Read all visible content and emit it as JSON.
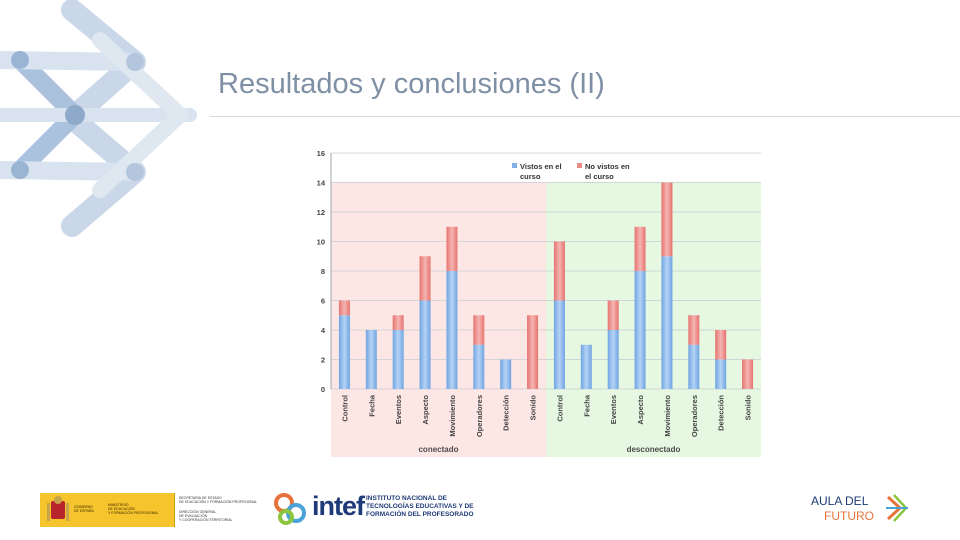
{
  "slide": {
    "title": "Resultados y conclusiones (II)"
  },
  "chart_data": {
    "type": "bar",
    "stacked": true,
    "title": "",
    "xlabel": "",
    "ylabel": "",
    "ylim": [
      0,
      16
    ],
    "yticks": [
      0,
      2,
      4,
      6,
      8,
      10,
      12,
      14,
      16
    ],
    "grid": true,
    "legend_position": "top-right",
    "groups": [
      {
        "label": "conectado",
        "start": 0,
        "end": 8,
        "background": "#fde7e5"
      },
      {
        "label": "desconectado",
        "start": 8,
        "end": 16,
        "background": "#e6f8e2"
      }
    ],
    "categories": [
      "Control",
      "Fecha",
      "Eventos",
      "Aspecto",
      "Movimiento",
      "Operadores",
      "Detección",
      "Sonido",
      "Control",
      "Fecha",
      "Eventos",
      "Aspecto",
      "Movimiento",
      "Operadores",
      "Detección",
      "Sonido"
    ],
    "series": [
      {
        "name": "Vistos en el curso",
        "color": "#7fb0e8",
        "values": [
          5,
          4,
          4,
          6,
          8,
          3,
          2,
          0,
          6,
          3,
          4,
          8,
          9,
          3,
          2,
          0
        ]
      },
      {
        "name": "No vistos en el curso",
        "color": "#ec8a86",
        "values": [
          1,
          0,
          1,
          3,
          3,
          2,
          0,
          5,
          4,
          0,
          2,
          3,
          5,
          2,
          2,
          2
        ]
      }
    ]
  },
  "footer": {
    "gov_text_1": "GOBIERNO\nDE ESPAÑA",
    "gov_text_2": "MINISTERIO\nDE EDUCACIÓN\nY FORMACIÓN PROFESIONAL",
    "gov_text_3": "SECRETARÍA DE ESTADO\nDE EDUCACIÓN Y FORMACIÓN PROFESIONAL",
    "gov_text_4": "DIRECCIÓN GENERAL\nDE EVALUACIÓN\nY COOPERACIÓN TERRITORIAL",
    "intef_word": "intef",
    "intef_sub_1": "INSTITUTO NACIONAL DE",
    "intef_sub_2": "TECNOLOGÍAS EDUCATIVAS Y DE",
    "intef_sub_3": "FORMACIÓN DEL PROFESORADO",
    "aula_1": "AULA DEL",
    "aula_2": "FUTURO"
  }
}
